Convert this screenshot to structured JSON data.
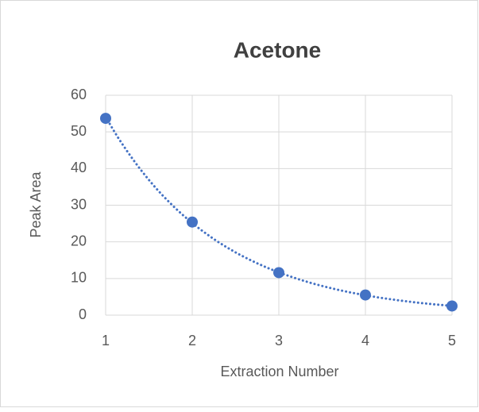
{
  "chart_data": {
    "type": "scatter",
    "title": "Acetone",
    "x_label": "Extraction Number",
    "y_label": "Peak Area",
    "x": [
      1,
      2,
      3,
      4,
      5
    ],
    "values": [
      53.7,
      25.4,
      11.6,
      5.5,
      2.5
    ],
    "color": "#4472c4",
    "xlim": [
      1,
      5
    ],
    "xticks": [
      1,
      2,
      3,
      4,
      5
    ],
    "ylim": [
      0,
      60
    ],
    "yticks": [
      0,
      10,
      20,
      30,
      40,
      50,
      60
    ],
    "grid": true,
    "trendline": "exponential"
  }
}
